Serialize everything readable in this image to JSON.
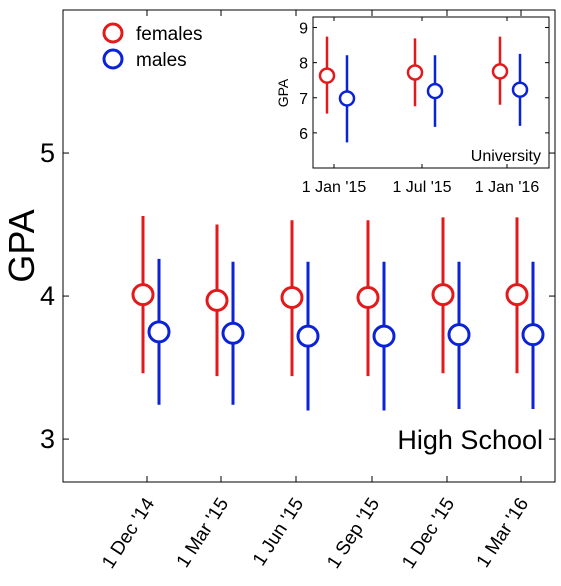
{
  "chart_data": [
    {
      "type": "scatter",
      "panel": "main",
      "title": "",
      "annotation": "High School",
      "xlabel": "",
      "ylabel": "GPA",
      "ylim": [
        2.7,
        6.0
      ],
      "yticks": [
        3,
        4,
        5
      ],
      "ytick_labels": [
        "3",
        "4",
        "5"
      ],
      "categories": [
        "1 Dec '14",
        "1 Mar '15",
        "1 Jun '15",
        "1 Sep '15",
        "1 Dec '15",
        "1 Mar '16"
      ],
      "grid": false,
      "legend": "top-left",
      "series": [
        {
          "name": "females",
          "color": "#e31a1c",
          "values": [
            4.01,
            3.97,
            3.99,
            3.99,
            4.01,
            4.01
          ],
          "lower": [
            3.46,
            3.44,
            3.44,
            3.44,
            3.46,
            3.46
          ],
          "upper": [
            4.56,
            4.5,
            4.53,
            4.53,
            4.55,
            4.55
          ]
        },
        {
          "name": "males",
          "color": "#0b22d6",
          "values": [
            3.75,
            3.74,
            3.72,
            3.72,
            3.73,
            3.73
          ],
          "lower": [
            3.24,
            3.24,
            3.2,
            3.2,
            3.21,
            3.21
          ],
          "upper": [
            4.26,
            4.24,
            4.24,
            4.24,
            4.24,
            4.24
          ]
        }
      ]
    },
    {
      "type": "scatter",
      "panel": "inset",
      "title": "",
      "annotation": "University",
      "xlabel": "",
      "ylabel": "GPA",
      "ylim": [
        5.0,
        9.3
      ],
      "yticks": [
        6,
        7,
        8,
        9
      ],
      "ytick_labels": [
        "6",
        "7",
        "8",
        "9"
      ],
      "categories": [
        "1 Jan '15",
        "1 Jul '15",
        "1 Jan '16"
      ],
      "grid": false,
      "series": [
        {
          "name": "females",
          "color": "#e31a1c",
          "values": [
            7.63,
            7.72,
            7.75
          ],
          "lower": [
            6.55,
            6.76,
            6.8
          ],
          "upper": [
            8.74,
            8.69,
            8.74
          ]
        },
        {
          "name": "males",
          "color": "#0b22d6",
          "values": [
            6.98,
            7.19,
            7.23
          ],
          "lower": [
            5.73,
            6.17,
            6.2
          ],
          "upper": [
            8.21,
            8.21,
            8.25
          ]
        }
      ]
    }
  ]
}
